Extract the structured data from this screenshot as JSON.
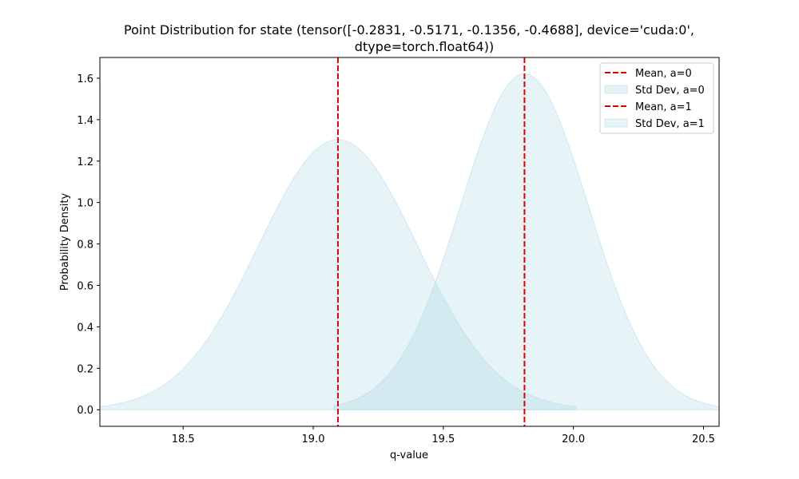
{
  "chart_data": {
    "type": "area",
    "title_lines": [
      "Point Distribution for state (tensor([-0.2831, -0.5171, -0.1356, -0.4688], device='cuda:0',",
      "dtype=torch.float64))"
    ],
    "xlabel": "q-value",
    "ylabel": "Probability Density",
    "xlim": [
      18.18,
      20.56
    ],
    "ylim": [
      -0.08,
      1.7
    ],
    "xticks": [
      18.5,
      19.0,
      19.5,
      20.0,
      20.5
    ],
    "xtick_labels": [
      "18.5",
      "19.0",
      "19.5",
      "20.0",
      "20.5"
    ],
    "yticks": [
      0.0,
      0.2,
      0.4,
      0.6,
      0.8,
      1.0,
      1.2,
      1.4,
      1.6
    ],
    "ytick_labels": [
      "0.0",
      "0.2",
      "0.4",
      "0.6",
      "0.8",
      "1.0",
      "1.2",
      "1.4",
      "1.6"
    ],
    "series": [
      {
        "name": "a=0",
        "mean": 19.095,
        "std": 0.306,
        "x_range": [
          18.18,
          20.01
        ],
        "mean_label": "Mean, a=0",
        "std_label": "Std Dev, a=0"
      },
      {
        "name": "a=1",
        "mean": 19.812,
        "std": 0.246,
        "x_range": [
          19.08,
          20.56
        ],
        "mean_label": "Mean, a=1",
        "std_label": "Std Dev, a=1"
      }
    ],
    "legend": {
      "position": "upper-right",
      "entries": [
        "Mean, a=0",
        "Std Dev, a=0",
        "Mean, a=1",
        "Std Dev, a=1"
      ]
    },
    "colors": {
      "fill": "#add8e6",
      "fill_edge": "#add8e6",
      "mean_line": "#e00000",
      "axis": "#000000"
    }
  }
}
